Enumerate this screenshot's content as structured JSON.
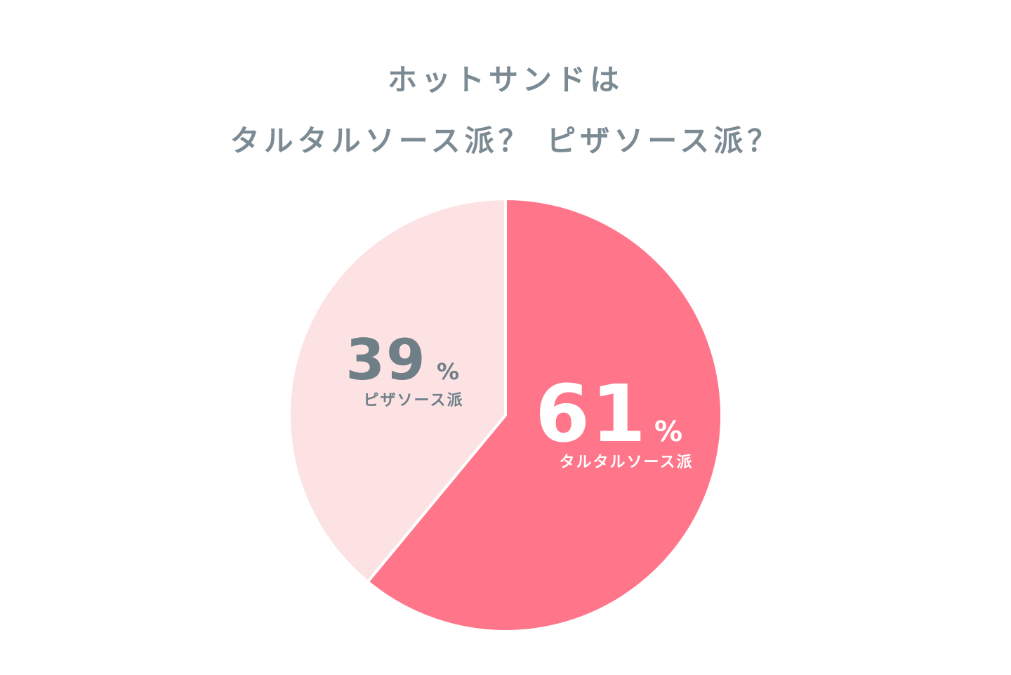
{
  "chart_data": {
    "type": "pie",
    "title": [
      "ホットサンドは",
      "タルタルソース派？ ピザソース派？"
    ],
    "slices": [
      {
        "label": "タルタルソース派",
        "value": 61,
        "color": "#ff7589",
        "text_color": "#ffffff"
      },
      {
        "label": "ピザソース派",
        "value": 39,
        "color": "#fde2e4",
        "text_color": "#6f7f88"
      }
    ],
    "unit": "%",
    "start": "top",
    "direction": "clockwise"
  }
}
